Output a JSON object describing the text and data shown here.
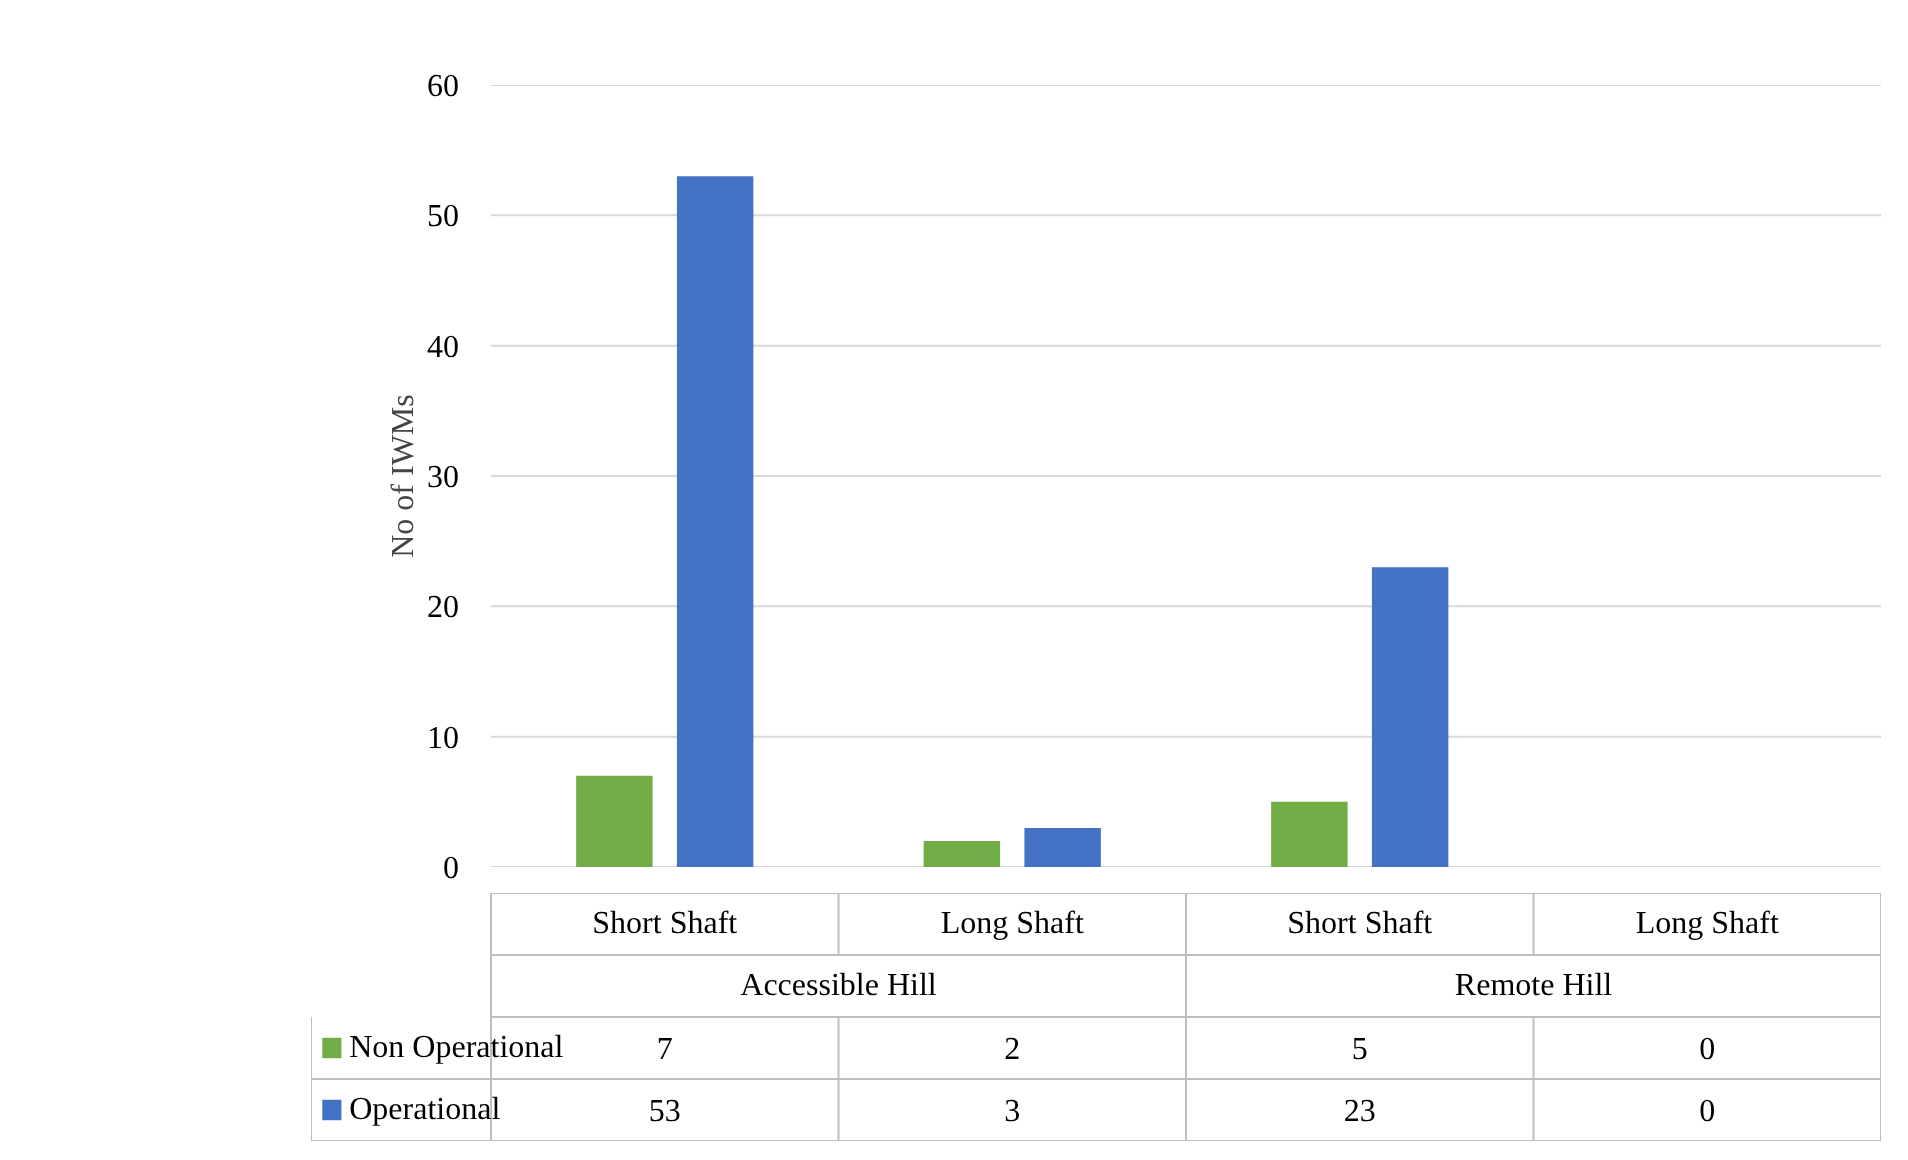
{
  "chart_data": {
    "type": "bar",
    "ylabel": "No of IWMs",
    "categories": [
      "Short Shaft",
      "Long Shaft",
      "Short Shaft",
      "Long Shaft"
    ],
    "annotations": [
      "Accessible Hill",
      "Remote Hill"
    ],
    "series": [
      {
        "name": "Non Operational",
        "color": "#70ad47",
        "values": [
          7,
          2,
          5,
          0
        ]
      },
      {
        "name": "Operational",
        "color": "#4472c4",
        "values": [
          53,
          3,
          23,
          0
        ]
      }
    ],
    "ylim": [
      0,
      60
    ],
    "yticks": [
      0,
      10,
      20,
      30,
      40,
      50,
      60
    ],
    "grid": "y",
    "legend": "bottom",
    "data_labels": true
  }
}
